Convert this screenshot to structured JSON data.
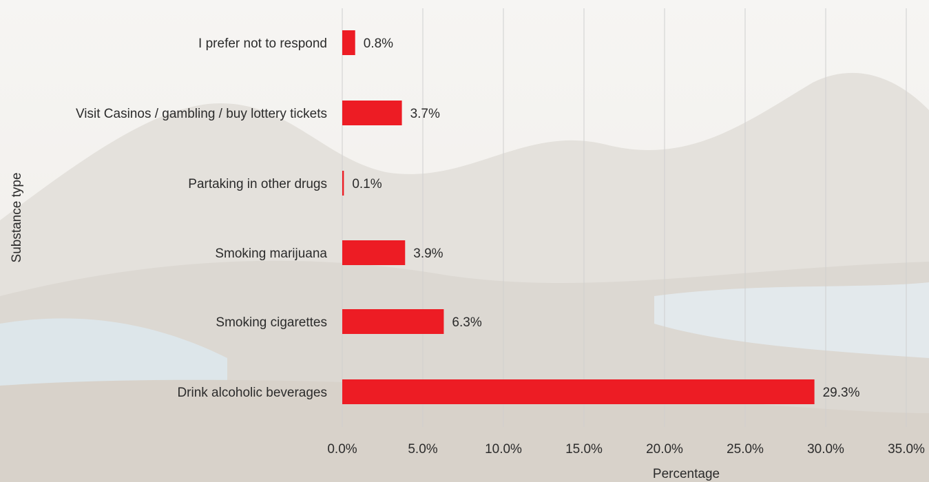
{
  "chart_data": {
    "type": "bar",
    "orientation": "horizontal",
    "categories": [
      "I prefer not to respond",
      "Visit Casinos / gambling / buy lottery tickets",
      "Partaking in other drugs",
      "Smoking marijuana",
      "Smoking cigarettes",
      "Drink alcoholic beverages"
    ],
    "values": [
      0.8,
      3.7,
      0.1,
      3.9,
      6.3,
      29.3
    ],
    "value_labels": [
      "0.8%",
      "3.7%",
      "0.1%",
      "3.9%",
      "6.3%",
      "29.3%"
    ],
    "xlabel": "Percentage",
    "ylabel": "Substance type",
    "xlim": [
      0,
      35
    ],
    "xticks": [
      0,
      5,
      10,
      15,
      20,
      25,
      30,
      35
    ],
    "xtick_labels": [
      "0.0%",
      "5.0%",
      "10.0%",
      "15.0%",
      "20.0%",
      "25.0%",
      "30.0%",
      "35.0%"
    ],
    "grid": "vertical",
    "legend": "none",
    "bar_color": "#ed1c24"
  }
}
